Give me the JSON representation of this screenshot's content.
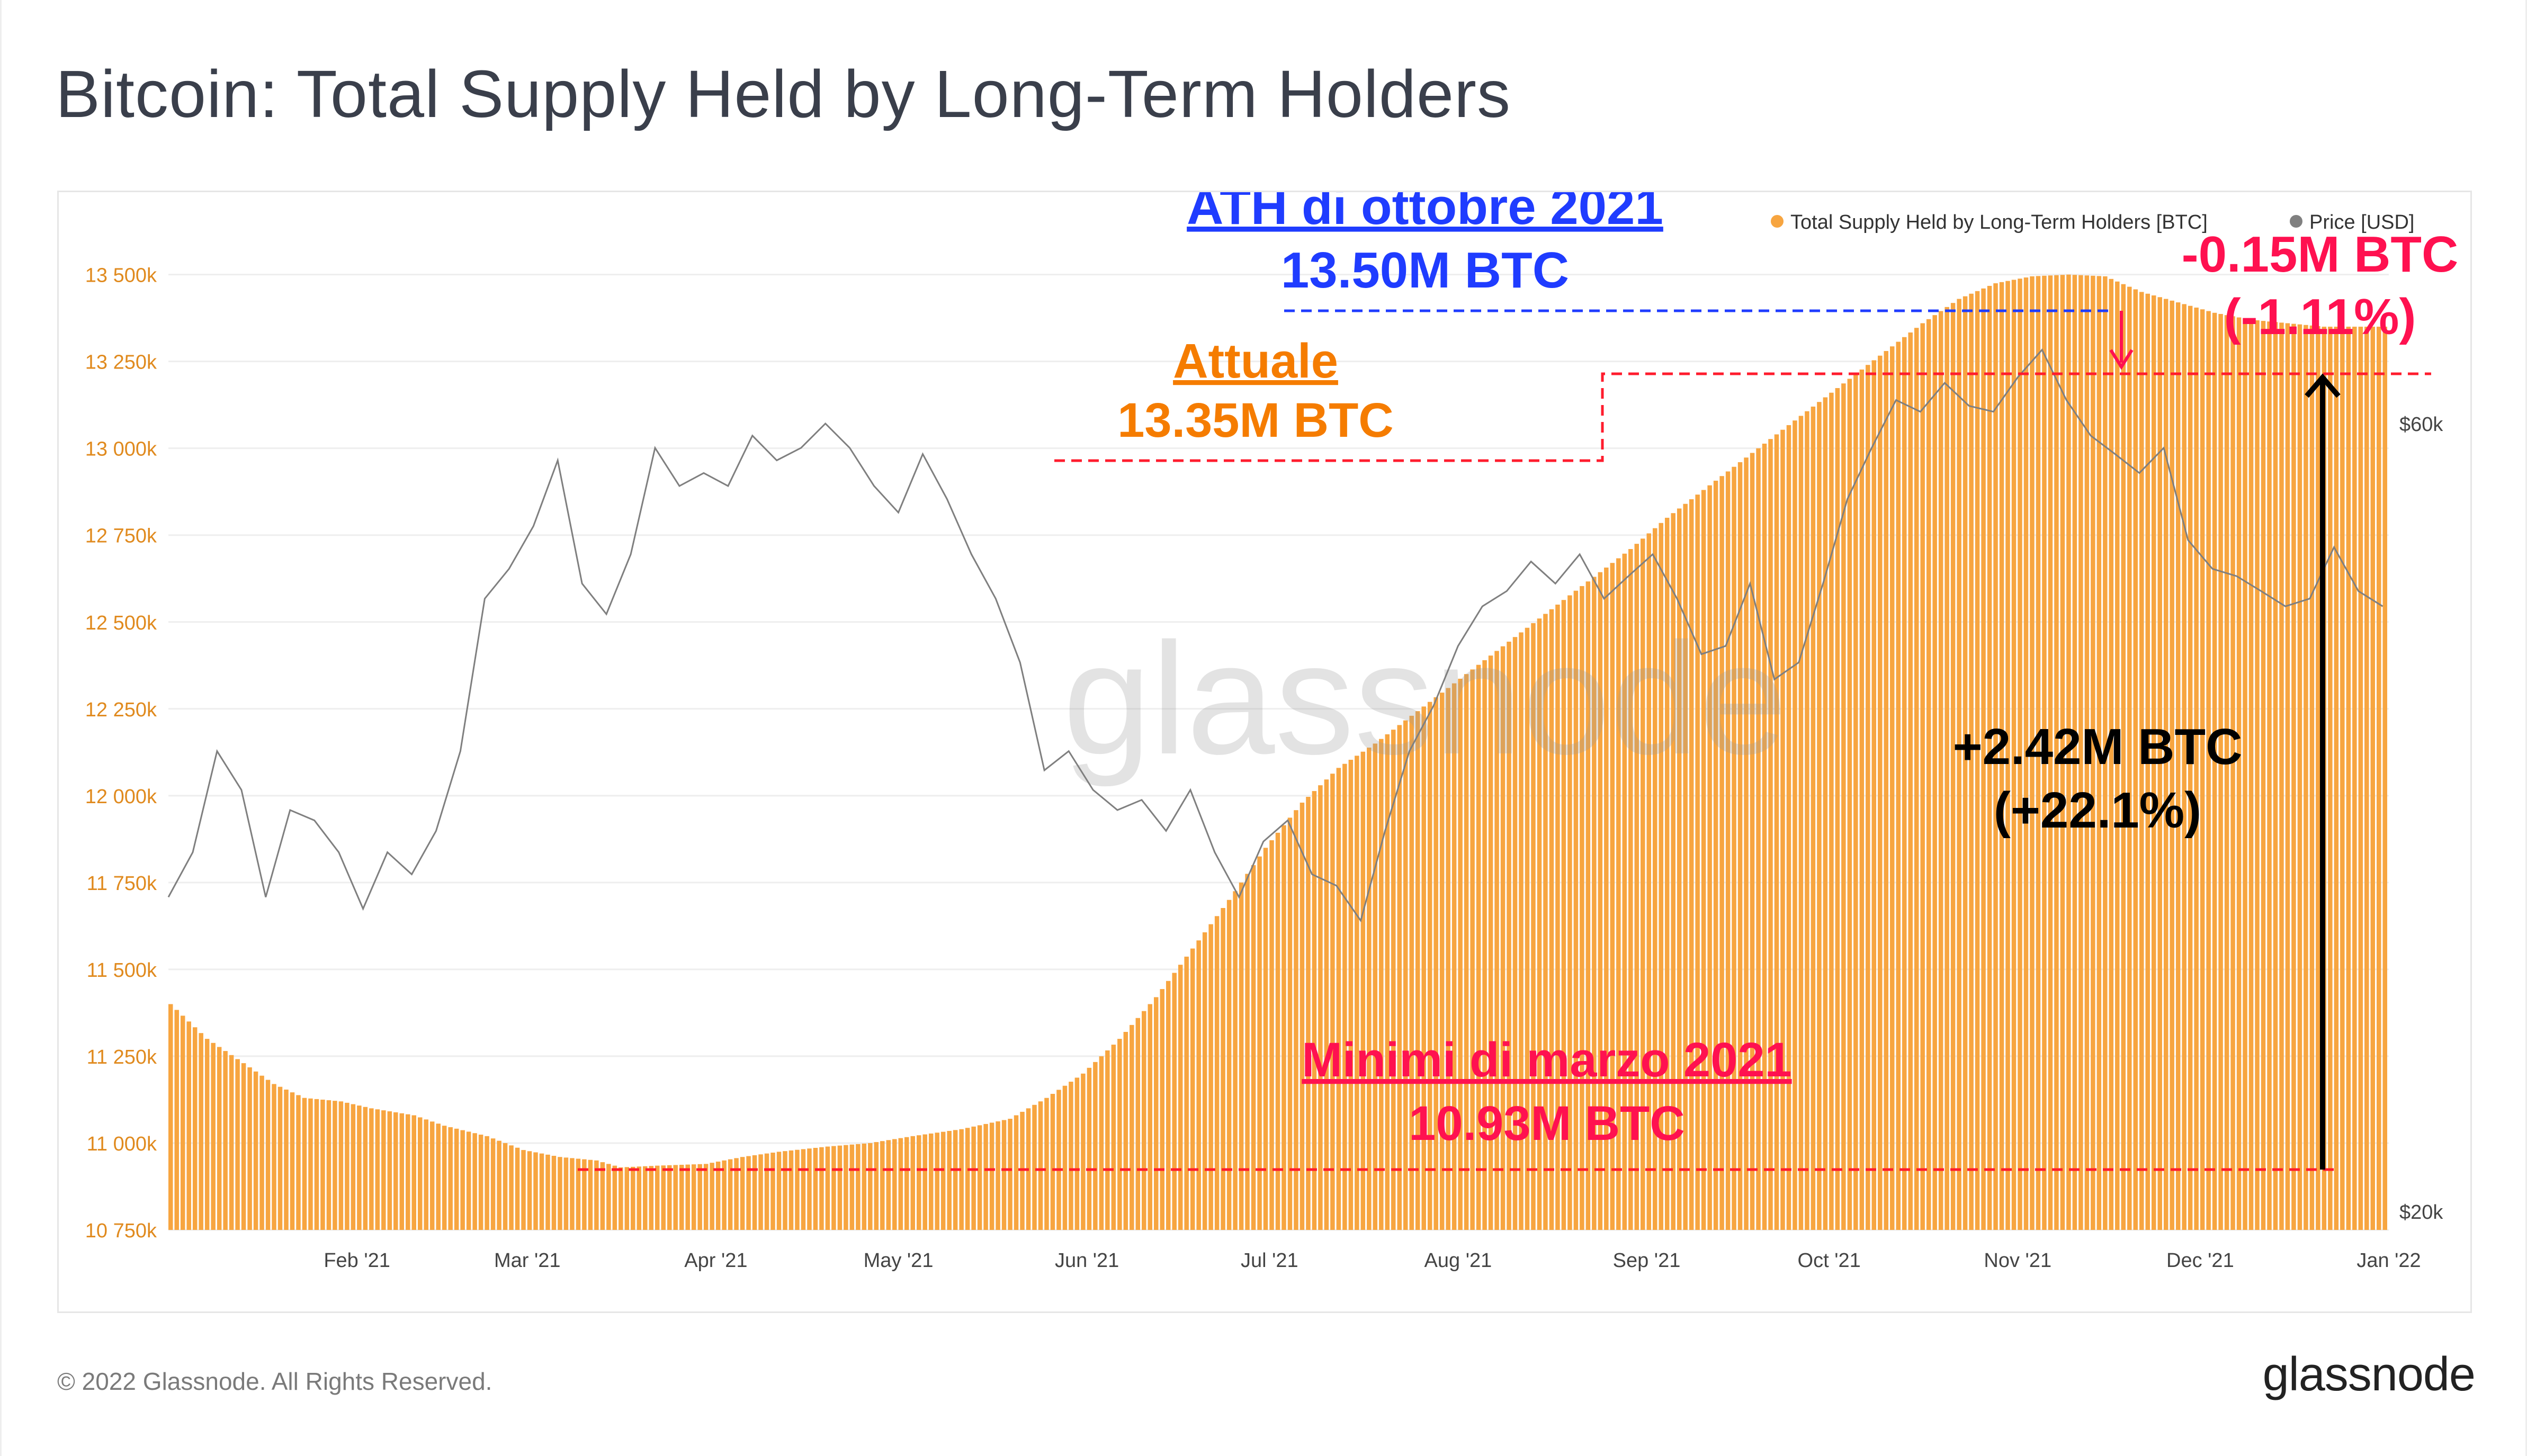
{
  "title": "Bitcoin: Total Supply Held by Long-Term Holders",
  "footer": {
    "copyright": "© 2022 Glassnode. All Rights Reserved.",
    "brand": "glassnode"
  },
  "watermark": "glassnode",
  "colors": {
    "bars": "#f7a540",
    "price": "#808080",
    "ath": "#1f3cff",
    "current": "#f57c00",
    "low": "#ff1150",
    "delta": "#000000",
    "axis_left": "#e08a1e",
    "axis_right": "#444444",
    "grid": "#eeeeee"
  },
  "legend": [
    {
      "label": "Total Supply Held by Long-Term Holders [BTC]",
      "color": "#f7a540"
    },
    {
      "label": "Price [USD]",
      "color": "#808080"
    }
  ],
  "annotations": {
    "ath_line1": "ATH di ottobre 2021",
    "ath_line2": "13.50M BTC",
    "current_line1": "Attuale",
    "current_line2": "13.35M BTC",
    "drop_line1": "-0.15M BTC",
    "drop_line2": "(-1.11%)",
    "gain_line1": "+2.42M BTC",
    "gain_line2": "(+22.1%)",
    "low_line1": "Minimi di marzo 2021",
    "low_line2": "10.93M BTC"
  },
  "chart_data": {
    "type": "bar",
    "title": "Bitcoin: Total Supply Held by Long-Term Holders",
    "x_range": [
      "2021-01-01",
      "2022-01-01"
    ],
    "x_ticks": [
      "Feb '21",
      "Mar '21",
      "Apr '21",
      "May '21",
      "Jun '21",
      "Jul '21",
      "Aug '21",
      "Sep '21",
      "Oct '21",
      "Nov '21",
      "Dec '21",
      "Jan '22"
    ],
    "y_left": {
      "label": "BTC",
      "min": 10750000,
      "max": 13600000,
      "ticks": [
        "10 750k",
        "11 000k",
        "11 250k",
        "11 500k",
        "11 750k",
        "12 000k",
        "12 250k",
        "12 500k",
        "12 750k",
        "13 000k",
        "13 250k",
        "13 500k"
      ],
      "tick_values": [
        10750000,
        11000000,
        11250000,
        11500000,
        11750000,
        12000000,
        12250000,
        12500000,
        12750000,
        13000000,
        13250000,
        13500000
      ]
    },
    "y_right": {
      "label": "USD",
      "scale": "log",
      "ticks": [
        "$20k",
        "$60k"
      ],
      "tick_values": [
        20000,
        60000
      ]
    },
    "series": [
      {
        "name": "Total Supply Held by Long-Term Holders [BTC]",
        "type": "bar",
        "points": [
          [
            0,
            11400000
          ],
          [
            6,
            11300000
          ],
          [
            12,
            11230000
          ],
          [
            17,
            11170000
          ],
          [
            22,
            11130000
          ],
          [
            28,
            11120000
          ],
          [
            33,
            11100000
          ],
          [
            40,
            11080000
          ],
          [
            45,
            11050000
          ],
          [
            52,
            11020000
          ],
          [
            58,
            10980000
          ],
          [
            64,
            10960000
          ],
          [
            70,
            10950000
          ],
          [
            74,
            10930000
          ],
          [
            80,
            10935000
          ],
          [
            88,
            10940000
          ],
          [
            94,
            10960000
          ],
          [
            100,
            10975000
          ],
          [
            108,
            10990000
          ],
          [
            115,
            11000000
          ],
          [
            122,
            11020000
          ],
          [
            130,
            11040000
          ],
          [
            138,
            11070000
          ],
          [
            144,
            11130000
          ],
          [
            150,
            11200000
          ],
          [
            156,
            11300000
          ],
          [
            162,
            11420000
          ],
          [
            168,
            11560000
          ],
          [
            174,
            11700000
          ],
          [
            180,
            11850000
          ],
          [
            186,
            11980000
          ],
          [
            192,
            12080000
          ],
          [
            198,
            12150000
          ],
          [
            204,
            12230000
          ],
          [
            210,
            12310000
          ],
          [
            216,
            12390000
          ],
          [
            222,
            12470000
          ],
          [
            228,
            12550000
          ],
          [
            234,
            12630000
          ],
          [
            240,
            12710000
          ],
          [
            246,
            12800000
          ],
          [
            252,
            12880000
          ],
          [
            258,
            12960000
          ],
          [
            264,
            13040000
          ],
          [
            270,
            13120000
          ],
          [
            276,
            13200000
          ],
          [
            282,
            13280000
          ],
          [
            288,
            13360000
          ],
          [
            294,
            13430000
          ],
          [
            300,
            13475000
          ],
          [
            306,
            13495000
          ],
          [
            312,
            13500000
          ],
          [
            318,
            13495000
          ],
          [
            324,
            13450000
          ],
          [
            330,
            13420000
          ],
          [
            336,
            13390000
          ],
          [
            342,
            13370000
          ],
          [
            348,
            13360000
          ],
          [
            354,
            13350000
          ],
          [
            360,
            13350000
          ],
          [
            364,
            13350000
          ]
        ]
      },
      {
        "name": "Price [USD]",
        "type": "line",
        "points": [
          [
            0,
            31000
          ],
          [
            4,
            33000
          ],
          [
            8,
            38000
          ],
          [
            12,
            36000
          ],
          [
            16,
            31000
          ],
          [
            20,
            35000
          ],
          [
            24,
            34500
          ],
          [
            28,
            33000
          ],
          [
            32,
            30500
          ],
          [
            36,
            33000
          ],
          [
            40,
            32000
          ],
          [
            44,
            34000
          ],
          [
            48,
            38000
          ],
          [
            52,
            47000
          ],
          [
            56,
            49000
          ],
          [
            60,
            52000
          ],
          [
            64,
            57000
          ],
          [
            68,
            48000
          ],
          [
            72,
            46000
          ],
          [
            76,
            50000
          ],
          [
            80,
            58000
          ],
          [
            84,
            55000
          ],
          [
            88,
            56000
          ],
          [
            92,
            55000
          ],
          [
            96,
            59000
          ],
          [
            100,
            57000
          ],
          [
            104,
            58000
          ],
          [
            108,
            60000
          ],
          [
            112,
            58000
          ],
          [
            116,
            55000
          ],
          [
            120,
            53000
          ],
          [
            124,
            57500
          ],
          [
            128,
            54000
          ],
          [
            132,
            50000
          ],
          [
            136,
            47000
          ],
          [
            140,
            43000
          ],
          [
            144,
            37000
          ],
          [
            148,
            38000
          ],
          [
            152,
            36000
          ],
          [
            156,
            35000
          ],
          [
            160,
            35500
          ],
          [
            164,
            34000
          ],
          [
            168,
            36000
          ],
          [
            172,
            33000
          ],
          [
            176,
            31000
          ],
          [
            180,
            33500
          ],
          [
            184,
            34500
          ],
          [
            188,
            32000
          ],
          [
            192,
            31500
          ],
          [
            196,
            30000
          ],
          [
            200,
            34000
          ],
          [
            204,
            38000
          ],
          [
            208,
            40500
          ],
          [
            212,
            44000
          ],
          [
            216,
            46500
          ],
          [
            220,
            47500
          ],
          [
            224,
            49500
          ],
          [
            228,
            48000
          ],
          [
            232,
            50000
          ],
          [
            236,
            47000
          ],
          [
            240,
            48500
          ],
          [
            244,
            50000
          ],
          [
            248,
            47000
          ],
          [
            252,
            43500
          ],
          [
            256,
            44000
          ],
          [
            260,
            48000
          ],
          [
            264,
            42000
          ],
          [
            268,
            43000
          ],
          [
            272,
            48000
          ],
          [
            276,
            54000
          ],
          [
            280,
            58000
          ],
          [
            284,
            62000
          ],
          [
            288,
            61000
          ],
          [
            292,
            63500
          ],
          [
            296,
            61500
          ],
          [
            300,
            61000
          ],
          [
            304,
            64000
          ],
          [
            308,
            66500
          ],
          [
            312,
            62000
          ],
          [
            316,
            59000
          ],
          [
            320,
            57500
          ],
          [
            324,
            56000
          ],
          [
            328,
            58000
          ],
          [
            332,
            51000
          ],
          [
            336,
            49000
          ],
          [
            340,
            48500
          ],
          [
            344,
            47500
          ],
          [
            348,
            46500
          ],
          [
            352,
            47000
          ],
          [
            356,
            50500
          ],
          [
            360,
            47500
          ],
          [
            364,
            46500
          ]
        ]
      }
    ]
  }
}
